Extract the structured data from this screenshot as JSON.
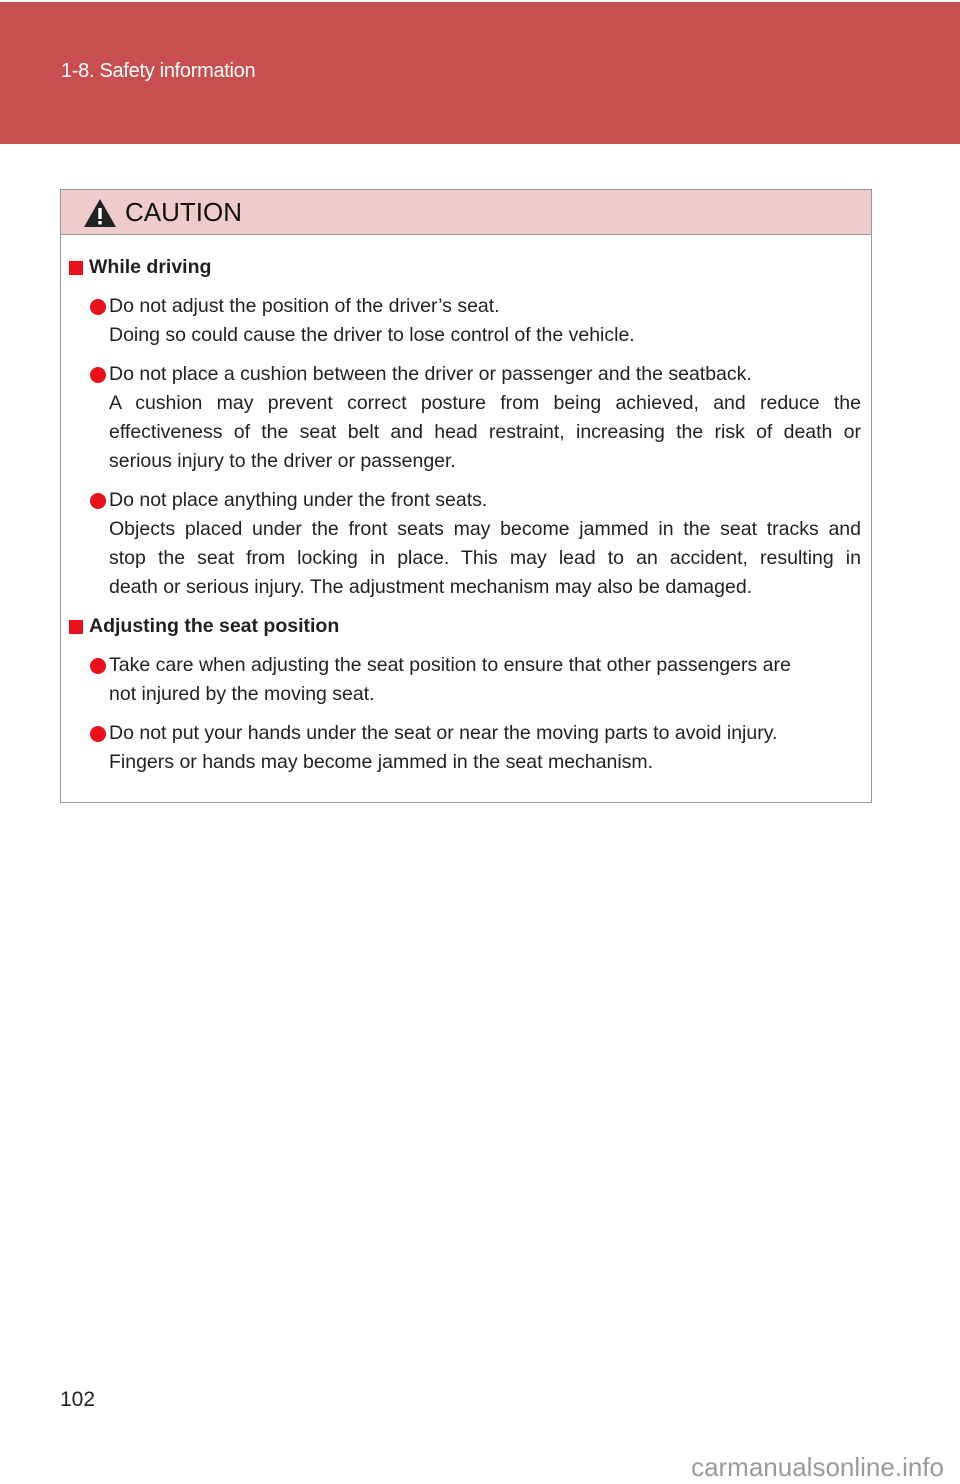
{
  "header": {
    "section": "1-8. Safety information",
    "band_color": "#c94e4f"
  },
  "caution": {
    "title": "CAUTION",
    "icon": "warning-triangle-icon",
    "sections": [
      {
        "heading": "While driving",
        "items": [
          {
            "lines": [
              "Do not adjust the position of the driver’s seat.",
              "Doing so could cause the driver to lose control of the vehicle."
            ]
          },
          {
            "lines": [
              "Do not place a cushion between the driver or passenger and the seatback.",
              "A cushion may prevent correct posture from being achieved, and reduce the",
              "effectiveness of the seat belt and head restraint, increasing the risk of death or",
              "serious injury to the driver or passenger."
            ]
          },
          {
            "lines": [
              "Do not place anything under the front seats.",
              "Objects placed under the front seats may become jammed in the seat tracks and",
              "stop the seat from locking in place. This may lead to an accident, resulting in",
              "death or serious injury. The adjustment mechanism may also be damaged."
            ]
          }
        ]
      },
      {
        "heading": "Adjusting the seat position",
        "items": [
          {
            "lines": [
              "Take care when adjusting the seat position to ensure that other passengers are",
              "not injured by the moving seat."
            ]
          },
          {
            "lines": [
              "Do not put your hands under the seat or near the moving parts to avoid injury.",
              "Fingers or hands may become jammed in the seat mechanism."
            ]
          }
        ]
      }
    ]
  },
  "footer": {
    "page_number": "102",
    "watermark": "carmanualsonline.info"
  }
}
